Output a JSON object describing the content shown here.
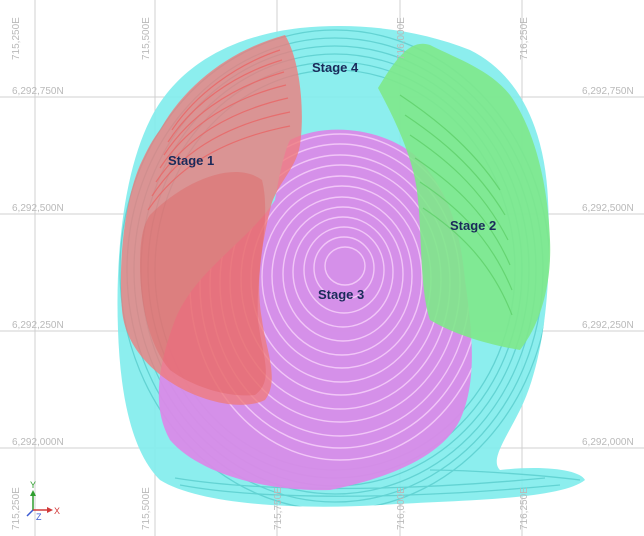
{
  "map": {
    "easting_labels": [
      "715,250E",
      "715,500E",
      "715,750E",
      "716,000E",
      "716,250E"
    ],
    "northing_labels": [
      "6,292,750N",
      "6,292,500N",
      "6,292,250N",
      "6,292,000N"
    ],
    "stages": [
      {
        "label": "Stage 1",
        "color": "#f07b7b"
      },
      {
        "label": "Stage 2",
        "color": "#7ee88a"
      },
      {
        "label": "Stage 3",
        "color": "#d98ae8"
      },
      {
        "label": "Stage 4",
        "color": "#82eded"
      }
    ],
    "axis_triad": {
      "x": "X",
      "y": "Y",
      "z": "Z"
    }
  }
}
